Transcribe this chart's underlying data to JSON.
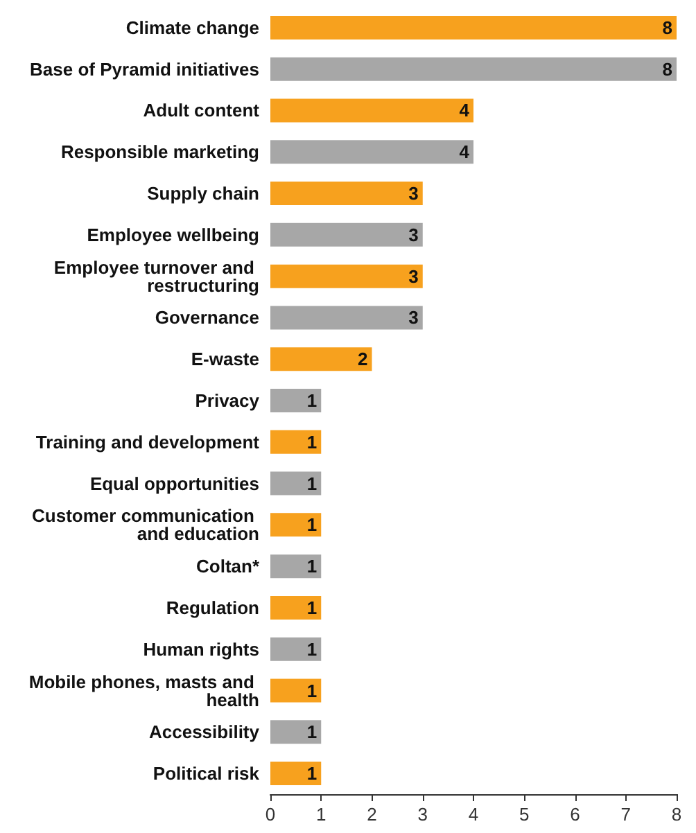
{
  "chart_data": {
    "type": "bar",
    "orientation": "horizontal",
    "categories": [
      "Climate change",
      "Base of Pyramid initiatives",
      "Adult content",
      "Responsible marketing",
      "Supply chain",
      "Employee wellbeing",
      "Employee turnover and restructuring",
      "Governance",
      "E-waste",
      "Privacy",
      "Training and development",
      "Equal opportunities",
      "Customer communication and education",
      "Coltan*",
      "Regulation",
      "Human rights",
      "Mobile phones, masts and health",
      "Accessibility",
      "Political risk"
    ],
    "values": [
      8,
      8,
      4,
      4,
      3,
      3,
      3,
      3,
      2,
      1,
      1,
      1,
      1,
      1,
      1,
      1,
      1,
      1,
      1
    ],
    "colors": [
      "#f7a11e",
      "#a7a7a7",
      "#f7a11e",
      "#a7a7a7",
      "#f7a11e",
      "#a7a7a7",
      "#f7a11e",
      "#a7a7a7",
      "#f7a11e",
      "#a7a7a7",
      "#f7a11e",
      "#a7a7a7",
      "#f7a11e",
      "#a7a7a7",
      "#f7a11e",
      "#a7a7a7",
      "#f7a11e",
      "#a7a7a7",
      "#f7a11e"
    ],
    "data_labels": true,
    "xlim": [
      0,
      8
    ],
    "xticks": [
      0,
      1,
      2,
      3,
      4,
      5,
      6,
      7,
      8
    ],
    "grid": false
  }
}
